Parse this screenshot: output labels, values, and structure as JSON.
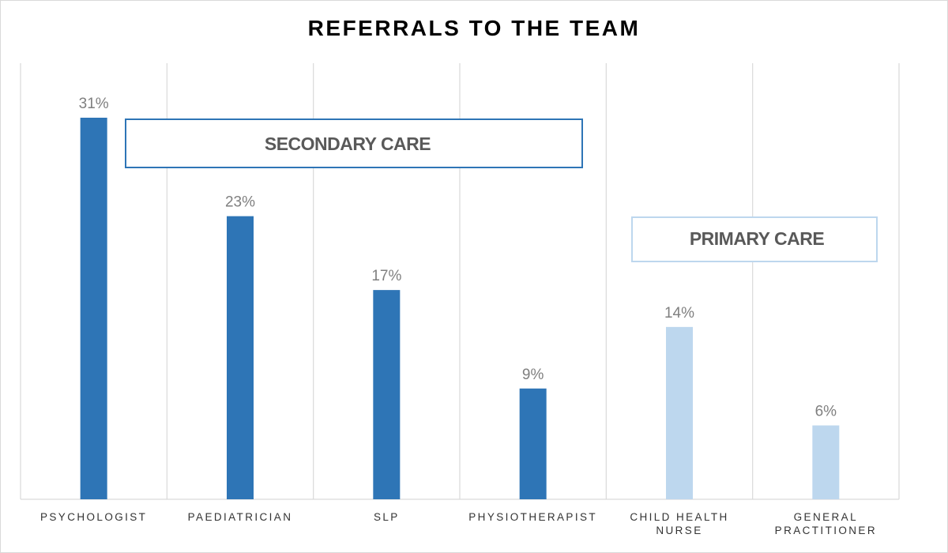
{
  "chart_data": {
    "type": "bar",
    "title": "REFERRALS TO THE TEAM",
    "categories": [
      [
        "PSYCHOLOGIST"
      ],
      [
        "PAEDIATRICIAN"
      ],
      [
        "SLP"
      ],
      [
        "PHYSIOTHERAPIST"
      ],
      [
        "CHILD HEALTH",
        "NURSE"
      ],
      [
        "GENERAL",
        "PRACTITIONER"
      ]
    ],
    "values": [
      31,
      23,
      17,
      9,
      14,
      6
    ],
    "value_labels": [
      "31%",
      "23%",
      "17%",
      "9%",
      "14%",
      "6%"
    ],
    "unit": "%",
    "ylim": [
      0,
      35
    ],
    "groups": [
      {
        "name": "SECONDARY CARE",
        "category_indices": [
          0,
          1,
          2,
          3
        ],
        "color": "#2e75b6",
        "border_color": "#2e75b6"
      },
      {
        "name": "PRIMARY CARE",
        "category_indices": [
          4,
          5
        ],
        "color": "#bdd7ee",
        "border_color": "#bdd7ee"
      }
    ],
    "grid": "vertical separators between categories",
    "xlabel": "",
    "ylabel": ""
  }
}
